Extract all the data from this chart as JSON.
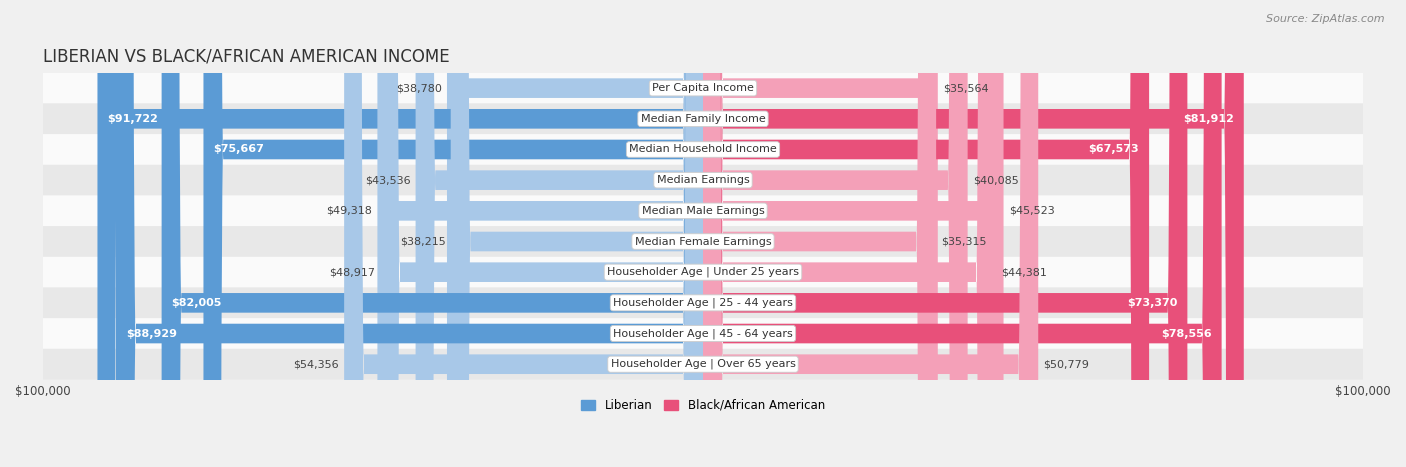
{
  "title": "LIBERIAN VS BLACK/AFRICAN AMERICAN INCOME",
  "source": "Source: ZipAtlas.com",
  "categories": [
    "Per Capita Income",
    "Median Family Income",
    "Median Household Income",
    "Median Earnings",
    "Median Male Earnings",
    "Median Female Earnings",
    "Householder Age | Under 25 years",
    "Householder Age | 25 - 44 years",
    "Householder Age | 45 - 64 years",
    "Householder Age | Over 65 years"
  ],
  "liberian_values": [
    38780,
    91722,
    75667,
    43536,
    49318,
    38215,
    48917,
    82005,
    88929,
    54356
  ],
  "black_values": [
    35564,
    81912,
    67573,
    40085,
    45523,
    35315,
    44381,
    73370,
    78556,
    50779
  ],
  "liberian_color_light": "#a8c8e8",
  "liberian_color_dark": "#5b9bd5",
  "black_color_light": "#f4a0b8",
  "black_color_dark": "#e8507a",
  "max_value": 100000,
  "background_color": "#f0f0f0",
  "row_bg_even": "#fafafa",
  "row_bg_odd": "#e8e8e8",
  "title_fontsize": 12,
  "source_fontsize": 8,
  "bar_label_fontsize": 8,
  "category_fontsize": 8,
  "axis_label_fontsize": 8.5,
  "liberian_threshold": 60000,
  "black_threshold": 60000
}
